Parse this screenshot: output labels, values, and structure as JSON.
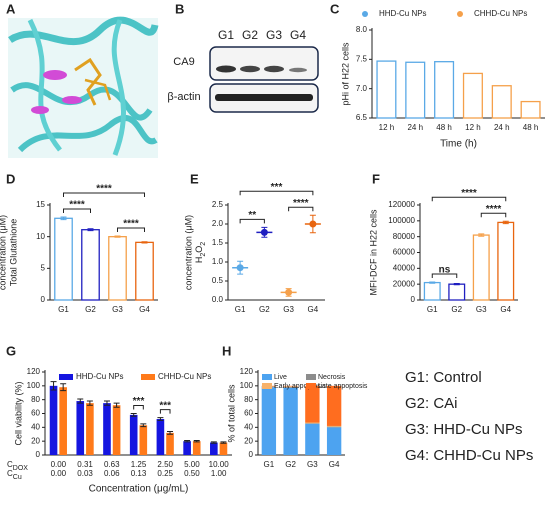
{
  "panels": [
    "A",
    "B",
    "C",
    "D",
    "E",
    "F",
    "G",
    "H"
  ],
  "blot": {
    "lanes": [
      "G1",
      "G2",
      "G3",
      "G4"
    ],
    "rows": [
      "CA9",
      "β-actin"
    ]
  },
  "key": [
    "G1: Control",
    "G2: CAi",
    "G3: HHD-Cu NPs",
    "G4: CHHD-Cu NPs"
  ],
  "chart_data": [
    {
      "type": "bar",
      "bar_style": "outline",
      "ylabel": "pHi of H22 cells",
      "xlabel": "Time (h)",
      "categories": [
        "12 h",
        "24 h",
        "48 h",
        "12 h",
        "24 h",
        "48 h"
      ],
      "series": [
        {
          "name": "HHD-Cu NPs",
          "color": "#5aa9e6",
          "values": [
            7.47,
            7.45,
            7.46,
            null,
            null,
            null
          ]
        },
        {
          "name": "CHHD-Cu NPs",
          "color": "#f5a04a",
          "values": [
            null,
            null,
            null,
            7.26,
            7.05,
            6.78
          ]
        }
      ],
      "ylim": [
        6.5,
        8.0
      ],
      "yticks": [
        6.5,
        {
          "value": 7,
          "label": "7.0"
        },
        7.5,
        {
          "value": 8,
          "label": "8.0"
        }
      ],
      "legend": "top"
    },
    {
      "type": "bar",
      "bar_style": "outline",
      "ylabel": [
        "Total Glutathione",
        "concentration (μM)"
      ],
      "categories": [
        "G1",
        "G2",
        "G3",
        "G4"
      ],
      "values": [
        12.9,
        11.1,
        10.0,
        9.1
      ],
      "errors": [
        0.2,
        0.15,
        0.1,
        0.1
      ],
      "colors": [
        "#5aa9e6",
        "#1f1fc0",
        "#f5a04a",
        "#e8650f"
      ],
      "ylim": [
        0,
        15
      ],
      "yticks": [
        0,
        5,
        10,
        15
      ],
      "significance": [
        {
          "between": [
            "G1",
            "G2"
          ],
          "label": "****"
        },
        {
          "between": [
            "G3",
            "G4"
          ],
          "label": "****"
        },
        {
          "between": [
            "G1",
            "G4"
          ],
          "label": "****"
        }
      ]
    },
    {
      "type": "dot",
      "ylabel": [
        [
          {
            "text": "H"
          },
          {
            "text": "2",
            "sub": true
          },
          {
            "text": "O"
          },
          {
            "text": "2",
            "sub": true
          }
        ],
        "concentration (μM)"
      ],
      "categories": [
        "G1",
        "G2",
        "G3",
        "G4"
      ],
      "values": [
        0.85,
        1.78,
        0.2,
        2.0
      ],
      "errors": [
        0.17,
        0.13,
        0.1,
        0.23
      ],
      "colors": [
        "#5aa9e6",
        "#1f1fc0",
        "#f5a04a",
        "#e8650f"
      ],
      "ylim": [
        0,
        2.5
      ],
      "yticks": [
        {
          "value": 0,
          "label": "0.0"
        },
        0.5,
        {
          "value": 1,
          "label": "1.0"
        },
        1.5,
        {
          "value": 2,
          "label": "2.0"
        },
        2.5
      ],
      "significance": [
        {
          "between": [
            "G1",
            "G2"
          ],
          "label": "**"
        },
        {
          "between": [
            "G3",
            "G4"
          ],
          "label": "****"
        },
        {
          "between": [
            "G1",
            "G4"
          ],
          "label": "***"
        }
      ]
    },
    {
      "type": "bar",
      "bar_style": "outline",
      "ylabel": "MFI-DCF in H22 cells",
      "categories": [
        "G1",
        "G2",
        "G3",
        "G4"
      ],
      "values": [
        22000,
        20000,
        82000,
        98000
      ],
      "errors": [
        800,
        800,
        1500,
        1500
      ],
      "colors": [
        "#5aa9e6",
        "#1f1fc0",
        "#f5a04a",
        "#e8650f"
      ],
      "ylim": [
        0,
        120000
      ],
      "yticks": [
        0,
        20000,
        40000,
        60000,
        80000,
        100000,
        120000
      ],
      "significance": [
        {
          "between": [
            "G1",
            "G2"
          ],
          "label": "ns"
        },
        {
          "between": [
            "G3",
            "G4"
          ],
          "label": "****"
        },
        {
          "between": [
            "G1",
            "G4"
          ],
          "label": "****"
        }
      ]
    },
    {
      "type": "bar",
      "bar_style": "filled",
      "ylabel": "Cell viability (%)",
      "xlabel": "Concentration (μg/mL)",
      "categories": [
        "0.00",
        "0.31",
        "0.63",
        "1.25",
        "2.50",
        "5.00",
        "10.00"
      ],
      "categories2": [
        "0.00",
        "0.03",
        "0.06",
        "0.13",
        "0.25",
        "0.50",
        "1.00"
      ],
      "row_labels": [
        {
          "text": "C",
          "sub": "DOX"
        },
        {
          "text": "C",
          "sub": "Cu"
        }
      ],
      "series": [
        {
          "name": "HHD-Cu NPs",
          "color": "#1515e0",
          "values": [
            100,
            78,
            75,
            58,
            52,
            20,
            18
          ],
          "errors": [
            6,
            3,
            3,
            2,
            2,
            1,
            1
          ]
        },
        {
          "name": "CHHD-Cu NPs",
          "color": "#ff7a1a",
          "values": [
            98,
            75,
            72,
            43,
            32,
            20,
            18
          ],
          "errors": [
            5,
            3,
            3,
            2,
            2,
            1,
            1
          ]
        }
      ],
      "ylim": [
        0,
        120
      ],
      "yticks": [
        0,
        20,
        40,
        60,
        80,
        100,
        120
      ],
      "legend": "top",
      "significance": [
        {
          "between": [
            "1.25"
          ],
          "label": "***"
        },
        {
          "between": [
            "2.50"
          ],
          "label": "***"
        }
      ]
    },
    {
      "type": "stacked",
      "ylabel": "% of total cells",
      "categories": [
        "G1",
        "G2",
        "G3",
        "G4"
      ],
      "series": [
        {
          "name": "Live",
          "color": "#4da3f0",
          "values": [
            98,
            97,
            45,
            40
          ]
        },
        {
          "name": "Necrosis",
          "color": "#8c8c8c",
          "values": [
            1,
            1.5,
            1,
            1
          ]
        },
        {
          "name": "Early appoptosis",
          "color": "#f8b26a",
          "values": [
            0.5,
            1,
            1,
            1
          ]
        },
        {
          "name": "Late appoptosis",
          "color": "#ff6d1f",
          "values": [
            0.5,
            0.5,
            53,
            58
          ]
        }
      ],
      "ylim": [
        0,
        120
      ],
      "yticks": [
        0,
        20,
        40,
        60,
        80,
        100,
        120
      ],
      "legend": "top"
    }
  ]
}
